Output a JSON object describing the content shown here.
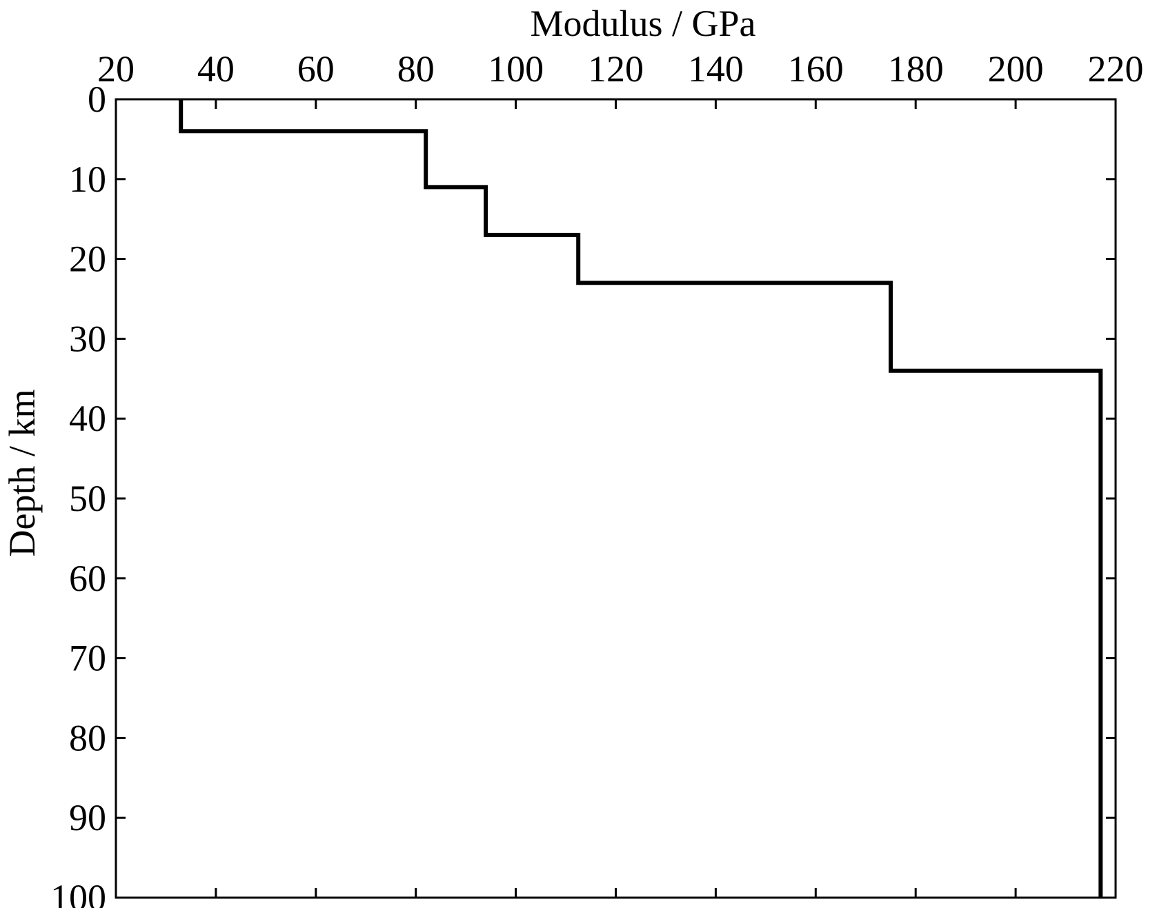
{
  "chart_data": {
    "type": "line",
    "xlabel": "Modulus / GPa",
    "ylabel": "Depth / km",
    "xlim": [
      20,
      220
    ],
    "ylim": [
      100,
      0
    ],
    "x_axis_position": "top",
    "y_axis_inverted": true,
    "grid": false,
    "x_ticks": [
      20,
      40,
      60,
      80,
      100,
      120,
      140,
      160,
      180,
      200,
      220
    ],
    "y_ticks": [
      0,
      10,
      20,
      30,
      40,
      50,
      60,
      70,
      80,
      90,
      100
    ],
    "x_tick_labels": [
      "20",
      "40",
      "60",
      "80",
      "100",
      "120",
      "140",
      "160",
      "180",
      "200",
      "220"
    ],
    "y_tick_labels": [
      "0",
      "10",
      "20",
      "30",
      "40",
      "50",
      "60",
      "70",
      "80",
      "90",
      "100"
    ],
    "series": [
      {
        "color": "#000000",
        "points": [
          {
            "x": 33,
            "y": 0
          },
          {
            "x": 33,
            "y": 4
          },
          {
            "x": 82,
            "y": 4
          },
          {
            "x": 82,
            "y": 11
          },
          {
            "x": 94,
            "y": 11
          },
          {
            "x": 94,
            "y": 17
          },
          {
            "x": 112.5,
            "y": 17
          },
          {
            "x": 112.5,
            "y": 23
          },
          {
            "x": 175,
            "y": 23
          },
          {
            "x": 175,
            "y": 34
          },
          {
            "x": 217,
            "y": 34
          },
          {
            "x": 217,
            "y": 100
          }
        ]
      }
    ]
  }
}
